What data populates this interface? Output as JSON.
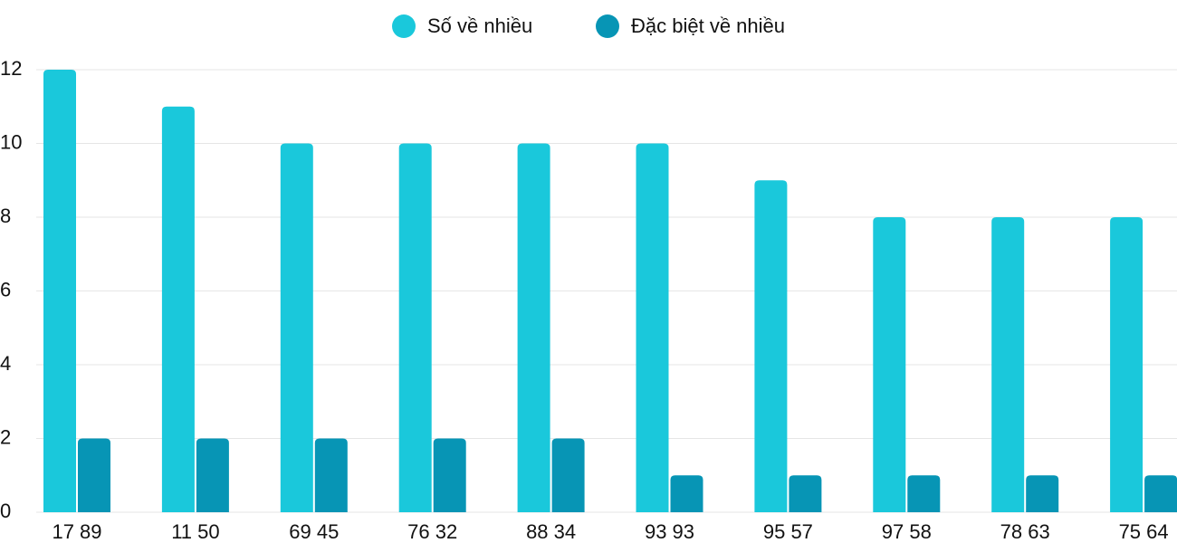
{
  "chart_data": {
    "type": "bar",
    "categories": [
      "17 89",
      "11 50",
      "69 45",
      "76 32",
      "88 34",
      "93 93",
      "95 57",
      "97 58",
      "78 63",
      "75 64"
    ],
    "series": [
      {
        "name": "Số về nhiều",
        "color": "#1ac8db",
        "values": [
          12,
          11,
          10,
          10,
          10,
          10,
          9,
          8,
          8,
          8
        ]
      },
      {
        "name": "Đặc biệt về nhiều",
        "color": "#0795b5",
        "values": [
          2,
          2,
          2,
          2,
          2,
          1,
          1,
          1,
          1,
          1
        ]
      }
    ],
    "ylim": [
      0,
      12
    ],
    "yticks": [
      0,
      2,
      4,
      6,
      8,
      10,
      12
    ],
    "grid": true,
    "legend": "top"
  }
}
